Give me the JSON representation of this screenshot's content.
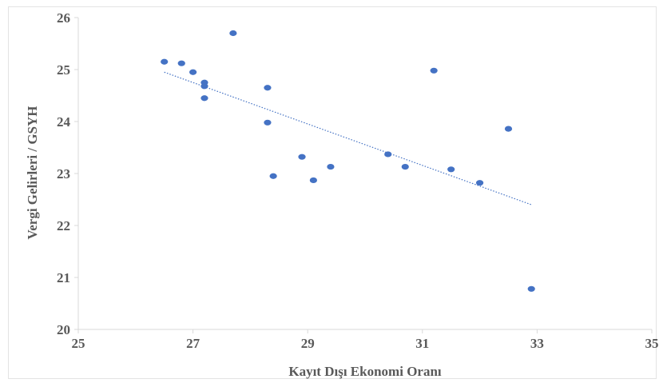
{
  "chart_data": {
    "type": "scatter",
    "title": "",
    "xlabel": "Kayıt Dışı Ekonomi Oranı",
    "ylabel": "Vergi Gelirleri / GSYH",
    "xlim": [
      25,
      35
    ],
    "ylim": [
      20,
      26
    ],
    "xticks": [
      25,
      27,
      29,
      31,
      33,
      35
    ],
    "yticks": [
      20,
      21,
      22,
      23,
      24,
      25,
      26
    ],
    "grid": false,
    "legend": "none",
    "colors": {
      "points": "#4472c4",
      "trendline": "#4472c4",
      "axis": "#d9d9d9",
      "text": "#595959"
    },
    "series": [
      {
        "x": [
          26.5,
          26.8,
          27.0,
          27.2,
          27.2,
          27.2,
          27.7,
          28.3,
          28.3,
          28.4,
          28.9,
          29.1,
          29.4,
          30.4,
          30.7,
          31.2,
          31.5,
          32.0,
          32.5,
          32.9
        ],
        "y": [
          25.15,
          25.12,
          24.95,
          24.75,
          24.68,
          24.45,
          25.7,
          24.65,
          23.98,
          22.95,
          23.32,
          22.87,
          23.13,
          23.37,
          23.13,
          24.98,
          23.08,
          22.82,
          23.86,
          20.78
        ]
      }
    ],
    "trendline": {
      "type": "linear",
      "x": [
        26.5,
        32.9
      ],
      "y": [
        24.95,
        22.4
      ]
    }
  }
}
